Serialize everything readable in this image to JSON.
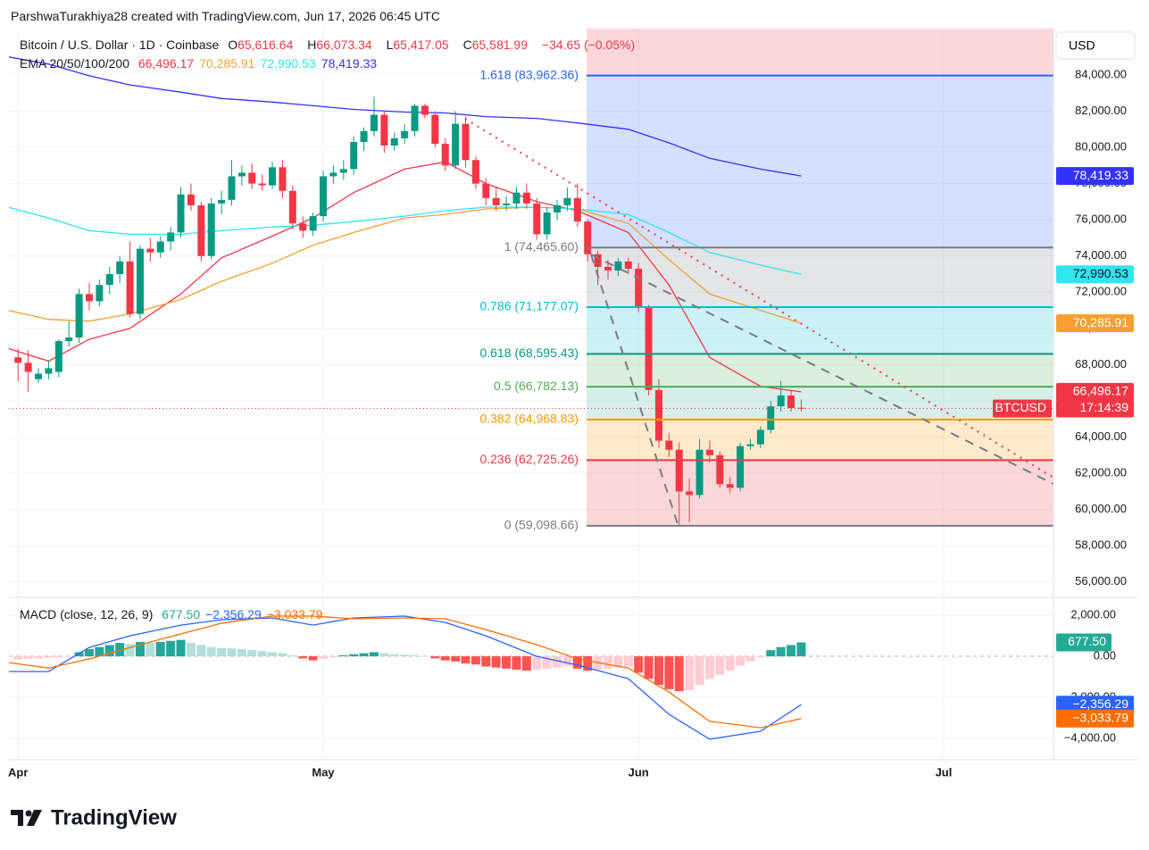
{
  "chart_data": {
    "type": "candlestick",
    "header": "ParshwaTurakhiya28 created with TradingView.com, Jun 17, 2026 06:45 UTC",
    "symbol": "Bitcoin / U.S. Dollar · 1D · Coinbase",
    "ohlc": [
      {
        "key": "O",
        "value": "65,616.64"
      },
      {
        "key": "H",
        "value": "66,073.34"
      },
      {
        "key": "L",
        "value": "65,417.05"
      },
      {
        "key": "C",
        "value": "65,581.99"
      }
    ],
    "change": "−34.65 (−0.05%)",
    "currency": "USD",
    "symbol_tag": "BTCUSD",
    "countdown": "17:14:39",
    "brand": "TradingView",
    "up_color": "#089981",
    "down_color": "#f23645",
    "xlim": [
      -0.9,
      101.8
    ],
    "xticks": [
      {
        "value": 0,
        "label": "Apr"
      },
      {
        "value": 30,
        "label": "May"
      },
      {
        "value": 61,
        "label": "Jun"
      },
      {
        "value": 91,
        "label": "Jul"
      }
    ],
    "ylim": [
      55200,
      86560
    ],
    "yticks": [
      {
        "value": 56000,
        "label": "56,000.00"
      },
      {
        "value": 58000,
        "label": "58,000.00"
      },
      {
        "value": 60000,
        "label": "60,000.00"
      },
      {
        "value": 62000,
        "label": "62,000.00"
      },
      {
        "value": 64000,
        "label": "64,000.00"
      },
      {
        "value": 66000,
        "label": "66,000.00"
      },
      {
        "value": 68000,
        "label": "68,000.00"
      },
      {
        "value": 70000,
        "label": "70,000.00"
      },
      {
        "value": 72000,
        "label": "72,000.00"
      },
      {
        "value": 74000,
        "label": "74,000.00"
      },
      {
        "value": 76000,
        "label": "76,000.00"
      },
      {
        "value": 78000,
        "label": "78,000.00"
      },
      {
        "value": 80000,
        "label": "80,000.00"
      },
      {
        "value": 82000,
        "label": "82,000.00"
      },
      {
        "value": 84000,
        "label": "84,000.00"
      }
    ],
    "grid": true,
    "x": [
      0,
      1,
      2,
      3,
      4,
      5,
      6,
      7,
      8,
      9,
      10,
      11,
      12,
      13,
      14,
      15,
      16,
      17,
      18,
      19,
      20,
      21,
      22,
      23,
      24,
      25,
      26,
      27,
      28,
      29,
      30,
      31,
      32,
      33,
      34,
      35,
      36,
      37,
      38,
      39,
      40,
      41,
      42,
      43,
      44,
      45,
      46,
      47,
      48,
      49,
      50,
      51,
      52,
      53,
      54,
      55,
      56,
      57,
      58,
      59,
      60,
      61,
      62,
      63,
      64,
      65,
      66,
      67,
      68,
      69,
      70,
      71,
      72,
      73,
      74,
      75,
      76,
      77
    ],
    "open": [
      68400,
      68100,
      67200,
      67500,
      67600,
      69300,
      69500,
      71900,
      71500,
      72400,
      73000,
      73700,
      70800,
      74400,
      74200,
      74800,
      75300,
      77400,
      76800,
      74000,
      76900,
      77100,
      78400,
      78600,
      78000,
      77900,
      78900,
      77600,
      75800,
      75400,
      76200,
      78400,
      78600,
      78800,
      80300,
      80900,
      81800,
      80100,
      80500,
      80900,
      82300,
      81800,
      80200,
      79000,
      81300,
      79300,
      78000,
      77200,
      76800,
      76900,
      77500,
      76900,
      75200,
      76400,
      76800,
      77200,
      75900,
      74100,
      73400,
      73200,
      73700,
      73300,
      71200,
      66600,
      63800,
      63300,
      61000,
      60800,
      63300,
      63000,
      61400,
      61200,
      63500,
      63600,
      64400,
      65700,
      66300,
      65616.64
    ],
    "high": [
      68900,
      68800,
      67800,
      68200,
      69400,
      70400,
      72200,
      72500,
      72700,
      73400,
      74000,
      74800,
      74600,
      75000,
      75100,
      75600,
      77800,
      78000,
      77000,
      77200,
      77600,
      79300,
      79000,
      79100,
      78500,
      79200,
      79300,
      77900,
      76200,
      76400,
      78700,
      79000,
      79300,
      80600,
      81100,
      82800,
      82000,
      80800,
      81300,
      82400,
      82400,
      82000,
      80500,
      82000,
      81700,
      79500,
      78300,
      77800,
      77300,
      77800,
      78000,
      77200,
      76700,
      77100,
      77800,
      78000,
      76000,
      74300,
      73800,
      73900,
      73900,
      73600,
      71300,
      67200,
      64200,
      63700,
      61700,
      63900,
      63800,
      63200,
      61800,
      63700,
      63900,
      64600,
      66000,
      67100,
      66600,
      66073.34
    ],
    "low": [
      67100,
      66500,
      67000,
      67200,
      67300,
      69000,
      69200,
      71000,
      71200,
      71900,
      72500,
      70600,
      70500,
      73700,
      73900,
      74300,
      75000,
      76500,
      73700,
      73800,
      76300,
      76800,
      77900,
      77700,
      77600,
      77700,
      77200,
      75500,
      75000,
      75100,
      75900,
      78000,
      78200,
      78500,
      79800,
      80600,
      79700,
      79800,
      80200,
      80600,
      81600,
      80000,
      78700,
      78800,
      78900,
      77700,
      76800,
      76500,
      76500,
      76600,
      76600,
      74900,
      74900,
      76000,
      76500,
      75600,
      73700,
      72400,
      72700,
      72900,
      73000,
      70900,
      66300,
      63400,
      62900,
      59100,
      59300,
      60600,
      62600,
      61200,
      60900,
      61000,
      63300,
      63400,
      64200,
      65400,
      65400,
      65417.05
    ],
    "close": [
      68100,
      67600,
      67500,
      67800,
      69300,
      69500,
      71900,
      71500,
      72400,
      73000,
      73700,
      70800,
      74400,
      74200,
      74800,
      75300,
      77400,
      76800,
      74000,
      76900,
      77100,
      78400,
      78600,
      78000,
      77900,
      78900,
      77600,
      75800,
      75400,
      76200,
      78400,
      78600,
      78800,
      80300,
      80900,
      81800,
      80100,
      80500,
      80900,
      82300,
      81800,
      80200,
      79000,
      81300,
      79300,
      78000,
      77200,
      76800,
      76900,
      77500,
      76900,
      75200,
      76400,
      76800,
      77200,
      75900,
      74100,
      73400,
      73200,
      73700,
      73300,
      71200,
      66600,
      63800,
      63300,
      61000,
      60800,
      63300,
      63000,
      61400,
      61200,
      63500,
      63600,
      64400,
      65700,
      66300,
      65600,
      65581.99
    ],
    "ema_title": "EMA 20/50/100/200",
    "ema_x": [
      -1,
      3,
      7,
      11,
      16,
      20,
      25,
      29,
      33,
      38,
      42,
      46,
      51,
      55,
      60,
      64,
      68,
      73,
      77
    ],
    "emas": [
      {
        "name": "66,496.17",
        "color": "#f23645",
        "values": [
          68900,
          68200,
          69400,
          70000,
          71900,
          73900,
          75100,
          76100,
          77500,
          78800,
          79200,
          78000,
          77000,
          76500,
          75300,
          72400,
          68400,
          66800,
          66496.17
        ]
      },
      {
        "name": "70,285.91",
        "color": "#f5a030",
        "values": [
          71000,
          70500,
          70400,
          70800,
          71600,
          72600,
          73600,
          74600,
          75300,
          76100,
          76300,
          76600,
          76700,
          76600,
          75800,
          73800,
          71900,
          71000,
          70285.91
        ]
      },
      {
        "name": "72,990.53",
        "color": "#2ee6f0",
        "values": [
          76700,
          76100,
          75400,
          75200,
          75200,
          75400,
          75600,
          75700,
          75900,
          76200,
          76500,
          76700,
          76700,
          76600,
          76300,
          75300,
          74200,
          73500,
          72990.53
        ]
      },
      {
        "name": "78,419.33",
        "color": "#3232ff",
        "values": [
          85000,
          84600,
          83950,
          83450,
          83050,
          82700,
          82500,
          82300,
          82100,
          81950,
          81900,
          81700,
          81600,
          81350,
          81000,
          80250,
          79400,
          78800,
          78419.33
        ]
      }
    ],
    "fib_top_zone_color": "rgba(242,54,69,0.2)",
    "fib": [
      {
        "label": "1.618 (83,962.36)",
        "value": 83962.36,
        "color": "#2962ff",
        "zone_color": "rgba(41,98,255,0.2)"
      },
      {
        "label": "1 (74,465.60)",
        "value": 74465.6,
        "color": "#787b86",
        "zone_color": "rgba(120,123,134,0.2)"
      },
      {
        "label": "0.786 (71,177.07)",
        "value": 71177.07,
        "color": "#00bcd4",
        "zone_color": "rgba(0,188,212,0.2)"
      },
      {
        "label": "0.618 (68,595.43)",
        "value": 68595.43,
        "color": "#089981",
        "zone_color": "rgba(76,175,80,0.2)"
      },
      {
        "label": "0.5 (66,782.13)",
        "value": 66782.13,
        "color": "#4caf50",
        "zone_color": "rgba(8,153,129,0.16)"
      },
      {
        "label": "0.382 (64,968.83)",
        "value": 64968.83,
        "color": "#ff9800",
        "zone_color": "rgba(255,152,0,0.2)"
      },
      {
        "label": "0.236 (62,725.26)",
        "value": 62725.26,
        "color": "#f23645",
        "zone_color": "rgba(242,54,69,0.2)"
      },
      {
        "label": "0 (59,098.66)",
        "value": 59098.66,
        "color": "#787b86"
      }
    ],
    "macd": {
      "title": "MACD (close, 12, 26, 9)",
      "ylim": [
        -5000,
        2830
      ],
      "yticks": [
        {
          "value": 2000,
          "label": "2,000.00"
        },
        {
          "value": 0,
          "label": "0.00"
        },
        {
          "value": -2000,
          "label": "−2,000.00"
        },
        {
          "value": -4000,
          "label": "−4,000.00"
        }
      ],
      "hist_colors": [
        "#26a69a",
        "#b2dfdb",
        "#ff5252",
        "#ffcdd2"
      ],
      "histogram": {
        "name": "677.50",
        "color": "#22ab94",
        "values": [
          -150,
          -120,
          -100,
          -80,
          -60,
          -20,
          200,
          350,
          450,
          550,
          650,
          600,
          700,
          650,
          700,
          750,
          800,
          650,
          550,
          450,
          400,
          380,
          350,
          300,
          250,
          200,
          150,
          50,
          -100,
          -200,
          -120,
          -50,
          50,
          100,
          150,
          200,
          150,
          100,
          80,
          50,
          0,
          -100,
          -200,
          -250,
          -350,
          -400,
          -500,
          -550,
          -600,
          -650,
          -700,
          -650,
          -600,
          -550,
          -500,
          -600,
          -700,
          -650,
          -600,
          -550,
          -500,
          -800,
          -1100,
          -1400,
          -1600,
          -1700,
          -1650,
          -1400,
          -1100,
          -900,
          -700,
          -450,
          -250,
          -50,
          300,
          450,
          550,
          677.5
        ]
      },
      "x": [
        -1,
        3,
        7,
        11,
        16,
        20,
        25,
        29,
        33,
        38,
        42,
        46,
        51,
        55,
        60,
        64,
        68,
        73,
        77
      ],
      "lines": [
        {
          "name": "−2,356.29",
          "color": "#2962ff",
          "values": [
            -740,
            -740,
            435,
            1000,
            1520,
            1780,
            1870,
            1520,
            1870,
            1960,
            1650,
            1000,
            0,
            -430,
            -1090,
            -2830,
            -4040,
            -3650,
            -2356.29
          ]
        },
        {
          "name": "−3,033.79",
          "color": "#ff6d00",
          "values": [
            -300,
            -570,
            -130,
            430,
            1090,
            1610,
            1960,
            1960,
            1830,
            1870,
            1830,
            1300,
            570,
            -130,
            -570,
            -1740,
            -3170,
            -3480,
            -3033.79
          ]
        }
      ]
    }
  }
}
